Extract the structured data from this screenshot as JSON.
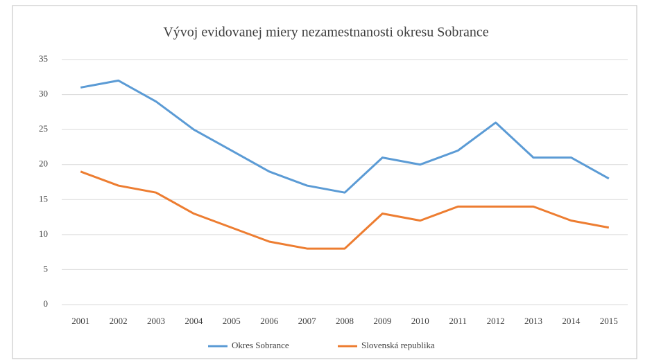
{
  "chart_data": {
    "type": "line",
    "title": "Vývoj evidovanej miery nezamestnanosti okresu Sobrance",
    "categories": [
      "2001",
      "2002",
      "2003",
      "2004",
      "2005",
      "2006",
      "2007",
      "2008",
      "2009",
      "2010",
      "2011",
      "2012",
      "2013",
      "2014",
      "2015"
    ],
    "series": [
      {
        "name": "Okres Sobrance",
        "color": "#5b9bd5",
        "values": [
          31,
          32,
          29,
          25,
          22,
          19,
          17,
          16,
          21,
          20,
          22,
          26,
          21,
          21,
          18
        ]
      },
      {
        "name": "Slovenská republika",
        "color": "#ed7d31",
        "values": [
          19,
          17,
          16,
          13,
          11,
          9,
          8,
          8,
          13,
          12,
          14,
          14,
          14,
          12,
          11
        ]
      }
    ],
    "ylim": [
      0,
      35
    ],
    "yticks": [
      0,
      5,
      10,
      15,
      20,
      25,
      30,
      35
    ],
    "grid": true,
    "legend": "bottom"
  }
}
